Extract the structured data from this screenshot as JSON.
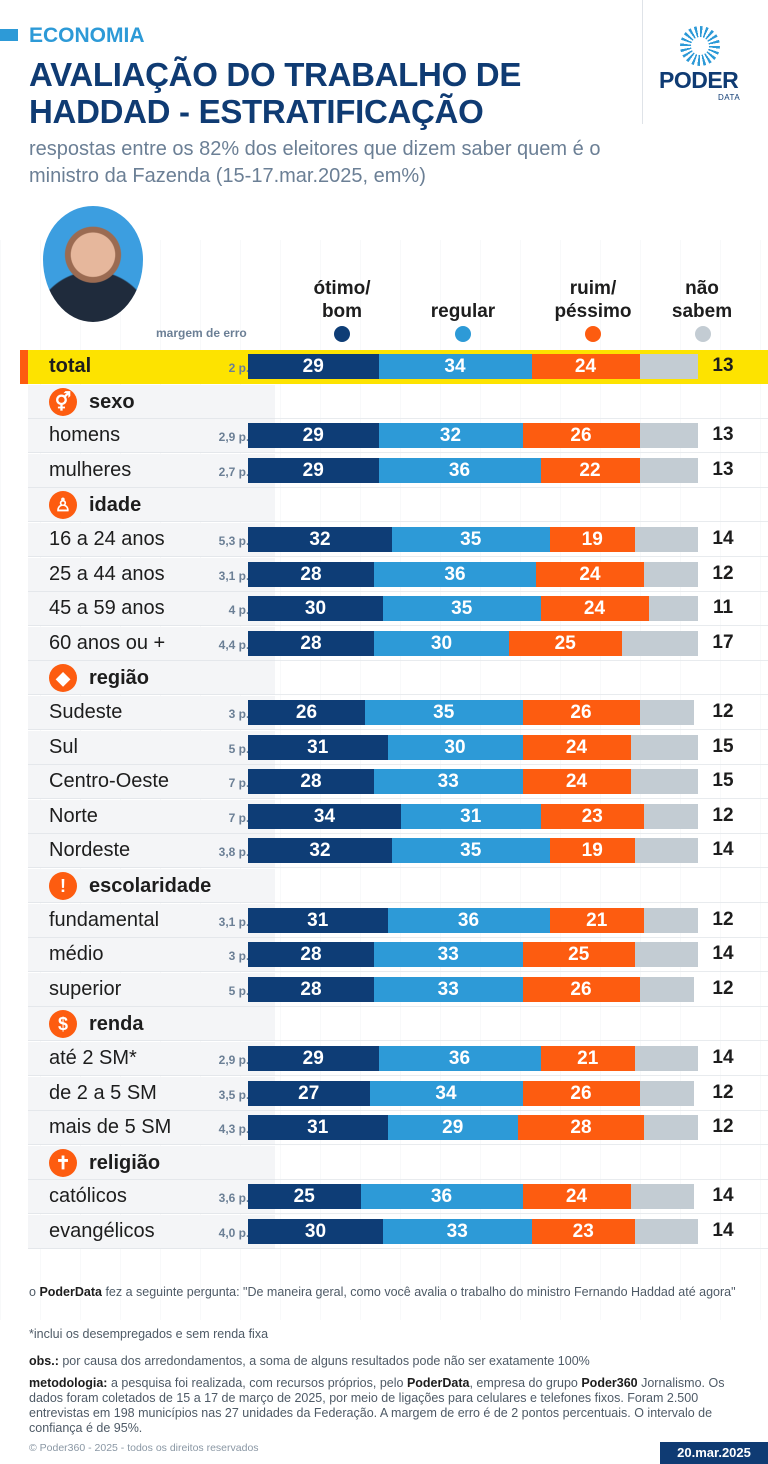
{
  "header": {
    "section": "ECONOMIA",
    "title": "AVALIAÇÃO DO TRABALHO DE HADDAD - ESTRATIFICAÇÃO",
    "subtitle": "respostas entre os 82% dos eleitores que dizem saber quem é o ministro da Fazenda (15-17.mar.2025, em%)",
    "logo_main": "PODER",
    "logo_sub": "DATA"
  },
  "columns": {
    "otimo": "ótimo/ bom",
    "regular": "regular",
    "ruim": "ruim/ péssimo",
    "nao": "não sabem",
    "margin_header": "margem de erro"
  },
  "colors": {
    "otimo": "#0e3d76",
    "regular": "#2d9ad7",
    "ruim": "#fd5c10",
    "nao": "#c3ccd3",
    "highlight": "#fde300"
  },
  "chart_data": {
    "type": "bar",
    "stacked": true,
    "orientation": "horizontal",
    "series_names": [
      "ótimo/ bom",
      "regular",
      "ruim/ péssimo",
      "não sabem"
    ],
    "rows": [
      {
        "kind": "data",
        "label": "total",
        "margin": "2 p.p.",
        "values": [
          29,
          34,
          24,
          13
        ],
        "highlight": true
      },
      {
        "kind": "category",
        "label": "sexo",
        "icon": "gender-icon",
        "glyph": "⚥"
      },
      {
        "kind": "data",
        "label": "homens",
        "margin": "2,9 p.p.",
        "values": [
          29,
          32,
          26,
          13
        ]
      },
      {
        "kind": "data",
        "label": "mulheres",
        "margin": "2,7 p.p.",
        "values": [
          29,
          36,
          22,
          13
        ]
      },
      {
        "kind": "category",
        "label": "idade",
        "icon": "person-icon",
        "glyph": "♙"
      },
      {
        "kind": "data",
        "label": "16 a 24 anos",
        "margin": "5,3 p.p.",
        "values": [
          32,
          35,
          19,
          14
        ]
      },
      {
        "kind": "data",
        "label": "25 a 44 anos",
        "margin": "3,1 p.p.",
        "values": [
          28,
          36,
          24,
          12
        ]
      },
      {
        "kind": "data",
        "label": "45 a 59 anos",
        "margin": "4 p.p.",
        "values": [
          30,
          35,
          24,
          11
        ]
      },
      {
        "kind": "data",
        "label": "60 anos ou +",
        "margin": "4,4 p.p.",
        "values": [
          28,
          30,
          25,
          17
        ]
      },
      {
        "kind": "category",
        "label": "região",
        "icon": "brazil-map-icon",
        "glyph": "◆"
      },
      {
        "kind": "data",
        "label": "Sudeste",
        "margin": "3 p.p.",
        "values": [
          26,
          35,
          26,
          12
        ]
      },
      {
        "kind": "data",
        "label": "Sul",
        "margin": "5 p.p.",
        "values": [
          31,
          30,
          24,
          15
        ]
      },
      {
        "kind": "data",
        "label": "Centro-Oeste",
        "margin": "7 p.p.",
        "values": [
          28,
          33,
          24,
          15
        ]
      },
      {
        "kind": "data",
        "label": "Norte",
        "margin": "7 p.p.",
        "values": [
          34,
          31,
          23,
          12
        ]
      },
      {
        "kind": "data",
        "label": "Nordeste",
        "margin": "3,8 p.p.",
        "values": [
          32,
          35,
          19,
          14
        ]
      },
      {
        "kind": "category",
        "label": "escolaridade",
        "icon": "exclamation-icon",
        "glyph": "!"
      },
      {
        "kind": "data",
        "label": "fundamental",
        "margin": "3,1 p.p.",
        "values": [
          31,
          36,
          21,
          12
        ]
      },
      {
        "kind": "data",
        "label": "médio",
        "margin": "3 p.p.",
        "values": [
          28,
          33,
          25,
          14
        ]
      },
      {
        "kind": "data",
        "label": "superior",
        "margin": "5 p.p.",
        "values": [
          28,
          33,
          26,
          12
        ]
      },
      {
        "kind": "category",
        "label": "renda",
        "icon": "dollar-icon",
        "glyph": "$"
      },
      {
        "kind": "data",
        "label": "até 2 SM*",
        "margin": "2,9 p.p.",
        "values": [
          29,
          36,
          21,
          14
        ]
      },
      {
        "kind": "data",
        "label": "de 2 a 5 SM",
        "margin": "3,5 p.p.",
        "values": [
          27,
          34,
          26,
          12
        ]
      },
      {
        "kind": "data",
        "label": "mais de 5 SM",
        "margin": "4,3 p.p.",
        "values": [
          31,
          29,
          28,
          12
        ]
      },
      {
        "kind": "category",
        "label": "religião",
        "icon": "cross-icon",
        "glyph": "✝"
      },
      {
        "kind": "data",
        "label": "católicos",
        "margin": "3,6 p.p.",
        "values": [
          25,
          36,
          24,
          14
        ]
      },
      {
        "kind": "data",
        "label": "evangélicos",
        "margin": "4,0 p.p.",
        "values": [
          30,
          33,
          23,
          14
        ]
      }
    ]
  },
  "footer": {
    "question_pre": "o ",
    "question_brand": "PoderData",
    "question_text": " fez a seguinte pergunta: \"De maneira geral, como você avalia o trabalho do ministro Fernando Haddad até agora\"",
    "note_sm": "*inclui os desempregados e sem renda fixa",
    "obs_label": "obs.:",
    "obs_text": " por causa dos arredondamentos, a soma de alguns resultados pode não ser exatamente 100%",
    "method_label": "metodologia:",
    "method_text_1": " a pesquisa foi realizada, com recursos próprios, pelo ",
    "method_brand_1": "PoderData",
    "method_text_2": ", empresa do grupo ",
    "method_brand_2": "Poder360",
    "method_text_3": " Jornalismo. Os dados foram coletados de 15 a 17 de março de 2025, por meio de ligações para celulares e telefones fixos. Foram 2.500 entrevistas em 198 municípios nas 27 unidades da Federação. A margem de erro é de 2 pontos percentuais. O intervalo de confiança é de 95%.",
    "copyright": "© Poder360 - 2025 - todos os direitos reservados",
    "date": "20.mar.2025"
  }
}
